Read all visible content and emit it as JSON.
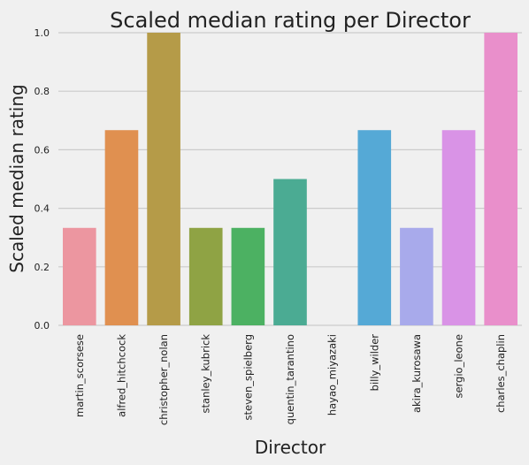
{
  "chart_data": {
    "type": "bar",
    "title": "Scaled median rating per Director",
    "xlabel": "Director",
    "ylabel": "Scaled median rating",
    "ylim": [
      0,
      1
    ],
    "yticks": [
      "0.0",
      "0.2",
      "0.4",
      "0.6",
      "0.8",
      "1.0"
    ],
    "grid": true,
    "categories": [
      "martin_scorsese",
      "alfred_hitchcock",
      "christopher_nolan",
      "stanley_kubrick",
      "steven_spielberg",
      "quentin_tarantino",
      "hayao_miyazaki",
      "billy_wilder",
      "akira_kurosawa",
      "sergio_leone",
      "charles_chaplin"
    ],
    "values": [
      0.333,
      0.667,
      1.0,
      0.333,
      0.333,
      0.5,
      0.0,
      0.667,
      0.333,
      0.667,
      1.0
    ],
    "colors": [
      "#ec96a0",
      "#e09050",
      "#b59b48",
      "#8fa344",
      "#4cb162",
      "#4bab93",
      "#4ea8b8",
      "#55a9d6",
      "#a8aaeb",
      "#d993e6",
      "#e98fcb"
    ]
  }
}
